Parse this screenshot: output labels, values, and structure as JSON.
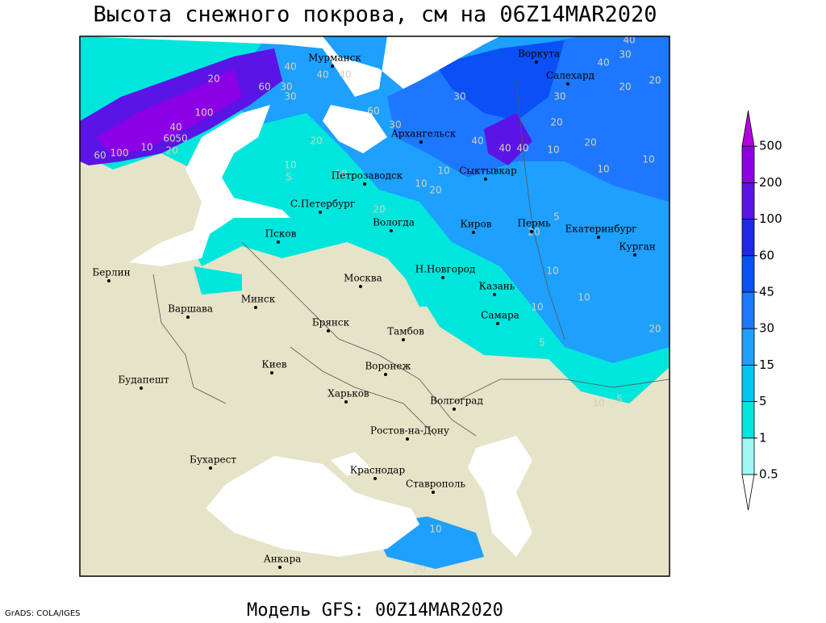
{
  "title": "Высота снежного покрова, см на 06Z14MAR2020",
  "footer_left": "GrADS: COLA/IGES",
  "footer_model": "Модель GFS: 00Z14MAR2020",
  "cities": [
    "Мурманск",
    "Воркута",
    "Салехард",
    "Архангельск",
    "Сыктывкар",
    "Петрозаводск",
    "С.Петербург",
    "Вологда",
    "Киров",
    "Пермь",
    "Екатеринбург",
    "Курган",
    "Псков",
    "Берлин",
    "Н.Новгород",
    "Москва",
    "Казань",
    "Варшава",
    "Минск",
    "Самара",
    "Брянск",
    "Тамбов",
    "Киев",
    "Воронеж",
    "Будапешт",
    "Харьков",
    "Волгоград",
    "Ростов-на-Дону",
    "Бухарест",
    "Краснодар",
    "Ставрополь",
    "Анкара"
  ],
  "contour_labels": [
    "20",
    "60",
    "30",
    "40",
    "40",
    "40",
    "100",
    "40",
    "60",
    "50",
    "20",
    "10",
    "100",
    "60",
    "30",
    "20",
    "10",
    "5",
    "30",
    "60",
    "30",
    "40",
    "40",
    "40",
    "10",
    "10",
    "20",
    "10",
    "20",
    "30",
    "40",
    "30",
    "40",
    "20",
    "20",
    "20",
    "10",
    "10",
    "5",
    "20",
    "10",
    "10",
    "10",
    "20",
    "5",
    "10",
    "5",
    "10",
    "20",
    "20",
    "10"
  ],
  "legend": {
    "levels": [
      0.5,
      1,
      5,
      15,
      30,
      45,
      60,
      100,
      200,
      500
    ],
    "colors": [
      "#ffffff",
      "#a0f5f5",
      "#00e6dc",
      "#00c8f0",
      "#1ea0ff",
      "#1e78ff",
      "#0a50f5",
      "#1e28e6",
      "#5a14e6",
      "#8c00e6",
      "#b400dc"
    ]
  }
}
